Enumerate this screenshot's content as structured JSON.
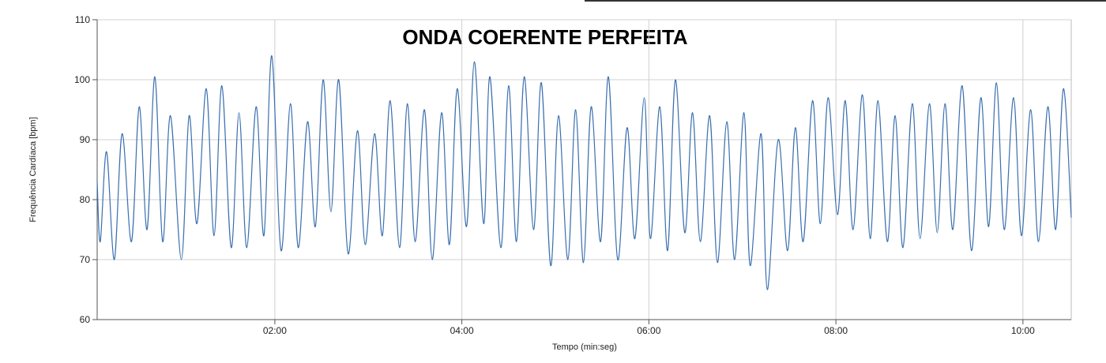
{
  "chart_data": {
    "type": "line",
    "title": "ONDA COERENTE PERFEITA",
    "x_label": "Tempo (min:seg)",
    "y_label": "Frequência Cardíaca [bpm]",
    "x": [
      6,
      8,
      12,
      17,
      22,
      28,
      33,
      38,
      43,
      48,
      53,
      60,
      65,
      70,
      76,
      81,
      86,
      92,
      97,
      102,
      108,
      113,
      118,
      124,
      130,
      135,
      141,
      146,
      151,
      156,
      161,
      167,
      173,
      178,
      184,
      189,
      194,
      200,
      205,
      210,
      216,
      221,
      227,
      232,
      237,
      243,
      248,
      254,
      258,
      265,
      270,
      275,
      280,
      286,
      291,
      297,
      302,
      308,
      313,
      318,
      323,
      329,
      334,
      340,
      346,
      351,
      357,
      361,
      367,
      372,
      377,
      383,
      388,
      393,
      399,
      404,
      410,
      415,
      421,
      425,
      432,
      436,
      443,
      449,
      454,
      459,
      465,
      470,
      475,
      481,
      486,
      491,
      497,
      502,
      507,
      513,
      518,
      523,
      529,
      534,
      540,
      545,
      550,
      555,
      561,
      567,
      573,
      578,
      583,
      588,
      594,
      599,
      605,
      610,
      616,
      621,
      626,
      631
    ],
    "series": [
      {
        "name": "Frequência Cardíaca",
        "color": "#3a6fb0",
        "values": [
          83,
          73,
          88,
          70,
          91,
          73,
          95.5,
          75,
          100.5,
          73,
          94,
          70,
          94,
          76,
          98.5,
          74,
          99,
          72,
          94.5,
          72,
          95.5,
          74,
          104,
          71.5,
          96,
          72,
          93,
          75.5,
          100,
          78,
          100,
          71,
          91.5,
          72.5,
          91,
          74,
          96.5,
          72,
          96,
          73,
          95,
          70,
          94.5,
          72.5,
          98.5,
          75.5,
          103,
          76,
          100.5,
          72,
          99,
          73,
          100.5,
          75,
          99.5,
          69,
          94,
          70,
          95,
          69.5,
          95.5,
          73,
          100.5,
          70,
          92,
          73.5,
          97,
          73.5,
          95.5,
          71.5,
          100,
          74.5,
          94.5,
          73,
          94,
          69.5,
          93,
          70,
          94.5,
          69,
          91,
          65,
          90,
          71.5,
          92,
          73,
          96.5,
          76,
          97,
          77.5,
          96.5,
          75,
          97.5,
          73.5,
          96.5,
          73,
          94,
          72,
          96,
          73.5,
          96,
          74.5,
          96,
          75,
          99,
          71.5,
          97,
          75.5,
          99.5,
          75,
          97,
          74,
          95,
          73,
          95.5,
          75,
          98.5,
          77
        ]
      }
    ],
    "xlim": [
      6,
      631
    ],
    "xticks": [
      {
        "value": 120,
        "label": "02:00"
      },
      {
        "value": 240,
        "label": "04:00"
      },
      {
        "value": 360,
        "label": "06:00"
      },
      {
        "value": 480,
        "label": "08:00"
      },
      {
        "value": 600,
        "label": "10:00"
      }
    ],
    "ylim": [
      60,
      110
    ],
    "yticks": [
      60,
      70,
      80,
      90,
      100,
      110
    ],
    "grid": true
  }
}
